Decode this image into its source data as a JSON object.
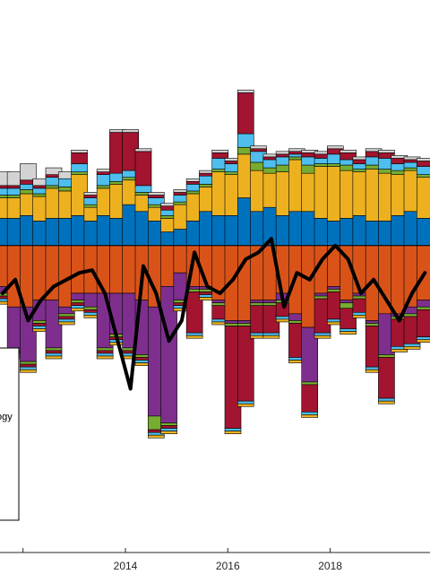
{
  "chart_data": {
    "type": "bar",
    "stacked": true,
    "xlim": [
      2011.55,
      2019.95
    ],
    "ylim": [
      -2.25,
      1.8
    ],
    "x_ticks": [
      2012,
      2014,
      2016,
      2018
    ],
    "x_tick_labels": [
      "",
      "2014",
      "2016",
      "2018"
    ],
    "grid": false,
    "legend_placement": "lower-left",
    "legend_visible_fragment": "ogy",
    "colors": {
      "blue": "#0072BD",
      "orange": "#D95319",
      "yellow": "#EDB120",
      "purple": "#7E2F8E",
      "green": "#77AC30",
      "cyan": "#4DBEEE",
      "darkred": "#A2142F",
      "gray": "#D3D3D3",
      "line": "#000000"
    },
    "components": [
      "blue",
      "yellow",
      "green",
      "cyan",
      "darkred",
      "gray",
      "orange",
      "purple"
    ],
    "x": [
      2011.6,
      2011.85,
      2012.1,
      2012.35,
      2012.6,
      2012.85,
      2013.1,
      2013.35,
      2013.6,
      2013.85,
      2014.1,
      2014.35,
      2014.6,
      2014.85,
      2015.1,
      2015.35,
      2015.6,
      2015.85,
      2016.1,
      2016.35,
      2016.6,
      2016.85,
      2017.1,
      2017.35,
      2017.6,
      2017.85,
      2018.1,
      2018.35,
      2018.6,
      2018.85,
      2019.1,
      2019.35,
      2019.6,
      2019.85
    ],
    "positive": {
      "blue": [
        0.2,
        0.2,
        0.22,
        0.18,
        0.2,
        0.2,
        0.22,
        0.18,
        0.22,
        0.2,
        0.3,
        0.25,
        0.18,
        0.1,
        0.12,
        0.18,
        0.25,
        0.22,
        0.22,
        0.35,
        0.25,
        0.28,
        0.22,
        0.25,
        0.25,
        0.2,
        0.18,
        0.2,
        0.22,
        0.18,
        0.18,
        0.22,
        0.25,
        0.2
      ],
      "yellow": [
        0.15,
        0.15,
        0.16,
        0.18,
        0.22,
        0.2,
        0.3,
        0.1,
        0.2,
        0.25,
        0.18,
        0.12,
        0.1,
        0.1,
        0.18,
        0.2,
        0.18,
        0.32,
        0.3,
        0.32,
        0.3,
        0.25,
        0.32,
        0.38,
        0.28,
        0.38,
        0.4,
        0.35,
        0.32,
        0.38,
        0.35,
        0.3,
        0.3,
        0.3
      ],
      "green": [
        0.02,
        0.02,
        0.03,
        0.02,
        0.02,
        0.03,
        0.02,
        0.02,
        0.02,
        0.02,
        0.02,
        0.02,
        0.02,
        0.02,
        0.02,
        0.02,
        0.02,
        0.02,
        0.02,
        0.05,
        0.06,
        0.04,
        0.05,
        0.02,
        0.06,
        0.02,
        0.02,
        0.04,
        0.02,
        0.03,
        0.03,
        0.03,
        0.02,
        0.02
      ],
      "cyan": [
        0.05,
        0.05,
        0.04,
        0.04,
        0.06,
        0.06,
        0.06,
        0.05,
        0.08,
        0.06,
        0.05,
        0.05,
        0.05,
        0.04,
        0.05,
        0.05,
        0.06,
        0.08,
        0.06,
        0.1,
        0.08,
        0.06,
        0.06,
        0.02,
        0.06,
        0.04,
        0.07,
        0.04,
        0.04,
        0.06,
        0.08,
        0.05,
        0.04,
        0.06
      ],
      "darkred": [
        0.02,
        0.02,
        0.03,
        0.02,
        0.02,
        0.0,
        0.08,
        0.02,
        0.02,
        0.3,
        0.28,
        0.25,
        0.02,
        0.03,
        0.02,
        0.02,
        0.02,
        0.04,
        0.02,
        0.3,
        0.02,
        0.02,
        0.02,
        0.02,
        0.03,
        0.03,
        0.04,
        0.05,
        0.03,
        0.04,
        0.04,
        0.04,
        0.02,
        0.04
      ],
      "gray": [
        0.1,
        0.1,
        0.12,
        0.05,
        0.05,
        0.05,
        0.02,
        0.02,
        0.02,
        0.02,
        0.02,
        0.02,
        0.02,
        0.02,
        0.02,
        0.02,
        0.02,
        0.02,
        0.02,
        0.02,
        0.02,
        0.02,
        0.02,
        0.02,
        0.02,
        0.02,
        0.02,
        0.02,
        0.02,
        0.02,
        0.02,
        0.02,
        0.02,
        0.02
      ]
    },
    "negative": {
      "orange": [
        -0.3,
        -0.45,
        -0.45,
        -0.4,
        -0.4,
        -0.45,
        -0.35,
        -0.35,
        -0.35,
        -0.35,
        -0.35,
        -0.4,
        -0.45,
        -0.3,
        -0.2,
        -0.3,
        -0.3,
        -0.4,
        -0.55,
        -0.55,
        -0.4,
        -0.4,
        -0.35,
        -0.5,
        -0.6,
        -0.35,
        -0.3,
        -0.4,
        -0.35,
        -0.55,
        -0.5,
        -0.5,
        -0.45,
        -0.4
      ],
      "purple": [
        -0.05,
        -0.3,
        -0.4,
        -0.15,
        -0.35,
        -0.05,
        -0.05,
        -0.1,
        -0.4,
        -0.3,
        -0.4,
        -0.4,
        -0.8,
        -1.0,
        -0.2,
        -0.02,
        -0.02,
        -0.02,
        -0.02,
        -0.02,
        -0.02,
        -0.02,
        -0.05,
        -0.05,
        -0.4,
        -0.02,
        -0.02,
        -0.02,
        -0.02,
        -0.02,
        -0.3,
        -0.02,
        -0.05,
        -0.05
      ],
      "green": [
        -0.02,
        -0.02,
        -0.02,
        -0.02,
        -0.02,
        -0.02,
        -0.02,
        -0.02,
        -0.02,
        -0.02,
        -0.02,
        -0.02,
        -0.1,
        -0.02,
        -0.02,
        -0.02,
        -0.02,
        -0.02,
        -0.02,
        -0.02,
        -0.02,
        -0.02,
        -0.02,
        -0.02,
        -0.02,
        -0.02,
        -0.02,
        -0.04,
        -0.02,
        -0.02,
        -0.02,
        -0.02,
        -0.02,
        -0.02
      ],
      "darkred": [
        -0.02,
        -0.02,
        -0.02,
        -0.02,
        -0.02,
        -0.02,
        -0.02,
        -0.02,
        -0.02,
        -0.02,
        -0.02,
        -0.02,
        -0.02,
        -0.02,
        -0.02,
        -0.3,
        -0.02,
        -0.1,
        -0.75,
        -0.55,
        -0.2,
        -0.2,
        -0.1,
        -0.25,
        -0.2,
        -0.25,
        -0.2,
        -0.15,
        -0.1,
        -0.3,
        -0.3,
        -0.2,
        -0.2,
        -0.2
      ],
      "cyan": [
        -0.02,
        -0.02,
        -0.02,
        -0.02,
        -0.02,
        -0.02,
        -0.02,
        -0.02,
        -0.02,
        -0.02,
        -0.02,
        -0.02,
        -0.02,
        -0.02,
        -0.02,
        -0.02,
        -0.02,
        -0.02,
        -0.02,
        -0.02,
        -0.02,
        -0.02,
        -0.02,
        -0.02,
        -0.02,
        -0.02,
        -0.02,
        -0.02,
        -0.02,
        -0.02,
        -0.02,
        -0.02,
        -0.02,
        -0.02
      ],
      "yellow": [
        -0.02,
        -0.02,
        -0.02,
        -0.02,
        -0.02,
        -0.02,
        -0.02,
        -0.02,
        -0.02,
        -0.02,
        -0.02,
        -0.02,
        -0.02,
        -0.02,
        -0.02,
        -0.02,
        -0.02,
        -0.02,
        -0.02,
        -0.02,
        -0.02,
        -0.02,
        -0.02,
        -0.02,
        -0.02,
        -0.02,
        -0.02,
        -0.02,
        -0.02,
        -0.02,
        -0.02,
        -0.02,
        -0.02,
        -0.02
      ]
    },
    "line_x": [
      2011.6,
      2011.85,
      2012.1,
      2012.35,
      2012.6,
      2012.85,
      2013.1,
      2013.35,
      2013.6,
      2013.85,
      2014.1,
      2014.35,
      2014.6,
      2014.85,
      2015.1,
      2015.35,
      2015.6,
      2015.85,
      2016.1,
      2016.35,
      2016.6,
      2016.85,
      2017.1,
      2017.35,
      2017.6,
      2017.85,
      2018.1,
      2018.35,
      2018.6,
      2018.85,
      2019.1,
      2019.35,
      2019.6,
      2019.85
    ],
    "line_y": [
      -0.35,
      -0.25,
      -0.55,
      -0.4,
      -0.3,
      -0.25,
      -0.2,
      -0.18,
      -0.35,
      -0.7,
      -1.05,
      -0.15,
      -0.35,
      -0.7,
      -0.55,
      -0.05,
      -0.3,
      -0.35,
      -0.25,
      -0.1,
      -0.05,
      0.05,
      -0.45,
      -0.2,
      -0.25,
      -0.1,
      0.0,
      -0.1,
      -0.35,
      -0.25,
      -0.4,
      -0.55,
      -0.35,
      -0.2
    ]
  }
}
